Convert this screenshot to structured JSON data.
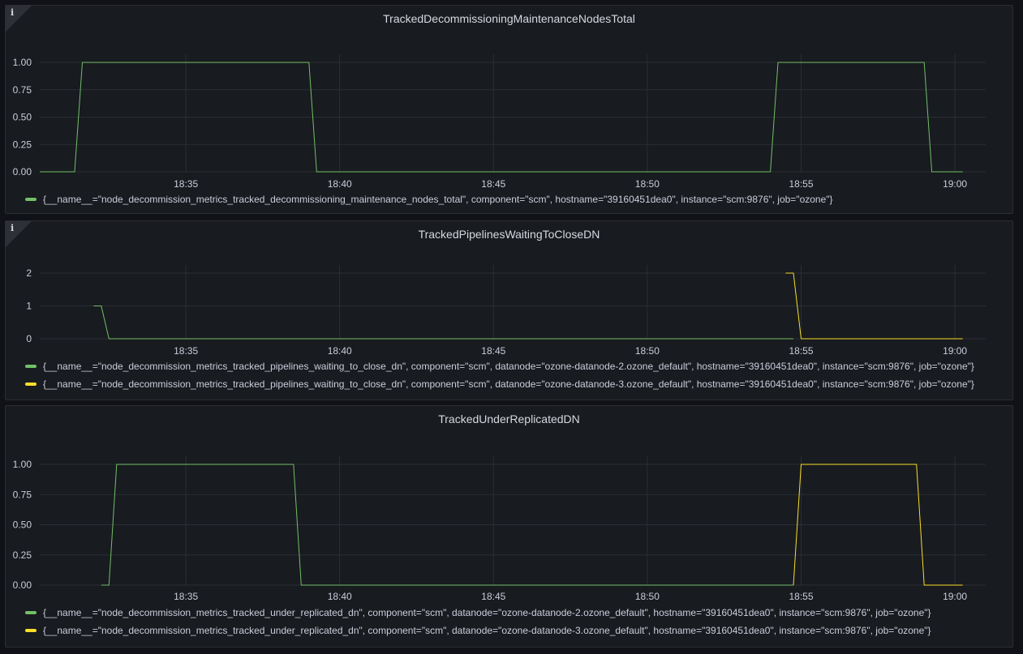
{
  "colors": {
    "green": "#73bf69",
    "yellow": "#fade2a",
    "grid": "#2b2e34",
    "background": "#181b1f"
  },
  "panels": [
    {
      "title": "TrackedDecommissioningMaintenanceNodesTotal",
      "info_icon": "info-icon",
      "has_info": true,
      "legend": [
        {
          "label": "{__name__=\"node_decommission_metrics_tracked_decommissioning_maintenance_nodes_total\", component=\"scm\", hostname=\"39160451dea0\", instance=\"scm:9876\", job=\"ozone\"}",
          "color": "#73bf69"
        }
      ]
    },
    {
      "title": "TrackedPipelinesWaitingToCloseDN",
      "info_icon": "info-icon",
      "has_info": true,
      "legend": [
        {
          "label": "{__name__=\"node_decommission_metrics_tracked_pipelines_waiting_to_close_dn\", component=\"scm\", datanode=\"ozone-datanode-2.ozone_default\", hostname=\"39160451dea0\", instance=\"scm:9876\", job=\"ozone\"}",
          "color": "#73bf69"
        },
        {
          "label": "{__name__=\"node_decommission_metrics_tracked_pipelines_waiting_to_close_dn\", component=\"scm\", datanode=\"ozone-datanode-3.ozone_default\", hostname=\"39160451dea0\", instance=\"scm:9876\", job=\"ozone\"}",
          "color": "#fade2a"
        }
      ]
    },
    {
      "title": "TrackedUnderReplicatedDN",
      "has_info": false,
      "legend": [
        {
          "label": "{__name__=\"node_decommission_metrics_tracked_under_replicated_dn\", component=\"scm\", datanode=\"ozone-datanode-2.ozone_default\", hostname=\"39160451dea0\", instance=\"scm:9876\", job=\"ozone\"}",
          "color": "#73bf69"
        },
        {
          "label": "{__name__=\"node_decommission_metrics_tracked_under_replicated_dn\", component=\"scm\", datanode=\"ozone-datanode-3.ozone_default\", hostname=\"39160451dea0\", instance=\"scm:9876\", job=\"ozone\"}",
          "color": "#fade2a"
        }
      ]
    }
  ],
  "chart_data": [
    {
      "type": "line",
      "title": "TrackedDecommissioningMaintenanceNodesTotal",
      "x_ticks": [
        "18:35",
        "18:40",
        "18:45",
        "18:50",
        "18:55",
        "19:00"
      ],
      "y_ticks": [
        "0.00",
        "0.25",
        "0.50",
        "0.75",
        "1.00"
      ],
      "ylim": [
        0,
        1
      ],
      "xlim": [
        "18:30:15",
        "19:01:00"
      ],
      "grid": true,
      "legend_position": "bottom",
      "series": [
        {
          "color": "#73bf69",
          "points": [
            [
              "18:30:15",
              0
            ],
            [
              "18:31:23",
              0
            ],
            [
              "18:31:38",
              1
            ],
            [
              "18:39:00",
              1
            ],
            [
              "18:39:15",
              0
            ],
            [
              "18:54:00",
              0
            ],
            [
              "18:54:15",
              1
            ],
            [
              "18:59:00",
              1
            ],
            [
              "18:59:15",
              0
            ],
            [
              "19:00:15",
              0
            ]
          ]
        }
      ]
    },
    {
      "type": "line",
      "title": "TrackedPipelinesWaitingToCloseDN",
      "x_ticks": [
        "18:35",
        "18:40",
        "18:45",
        "18:50",
        "18:55",
        "19:00"
      ],
      "y_ticks": [
        "0",
        "1",
        "2"
      ],
      "ylim": [
        0,
        2
      ],
      "xlim": [
        "18:30:15",
        "19:01:00"
      ],
      "grid": true,
      "legend_position": "bottom",
      "series": [
        {
          "color": "#73bf69",
          "points": [
            [
              "18:32:00",
              1
            ],
            [
              "18:32:15",
              1
            ],
            [
              "18:32:30",
              0
            ],
            [
              "18:54:45",
              0
            ]
          ]
        },
        {
          "color": "#fade2a",
          "points": [
            [
              "18:54:30",
              2
            ],
            [
              "18:54:45",
              2
            ],
            [
              "18:55:00",
              0
            ],
            [
              "19:00:15",
              0
            ]
          ]
        }
      ]
    },
    {
      "type": "line",
      "title": "TrackedUnderReplicatedDN",
      "x_ticks": [
        "18:35",
        "18:40",
        "18:45",
        "18:50",
        "18:55",
        "19:00"
      ],
      "y_ticks": [
        "0.00",
        "0.25",
        "0.50",
        "0.75",
        "1.00"
      ],
      "ylim": [
        0,
        1
      ],
      "xlim": [
        "18:30:15",
        "19:01:00"
      ],
      "grid": true,
      "legend_position": "bottom",
      "series": [
        {
          "color": "#73bf69",
          "points": [
            [
              "18:32:15",
              0
            ],
            [
              "18:32:30",
              0
            ],
            [
              "18:32:45",
              1
            ],
            [
              "18:38:30",
              1
            ],
            [
              "18:38:45",
              0
            ],
            [
              "18:54:45",
              0
            ]
          ]
        },
        {
          "color": "#fade2a",
          "points": [
            [
              "18:54:45",
              0
            ],
            [
              "18:55:00",
              1
            ],
            [
              "18:58:45",
              1
            ],
            [
              "18:59:00",
              0
            ],
            [
              "19:00:15",
              0
            ]
          ]
        }
      ]
    }
  ]
}
